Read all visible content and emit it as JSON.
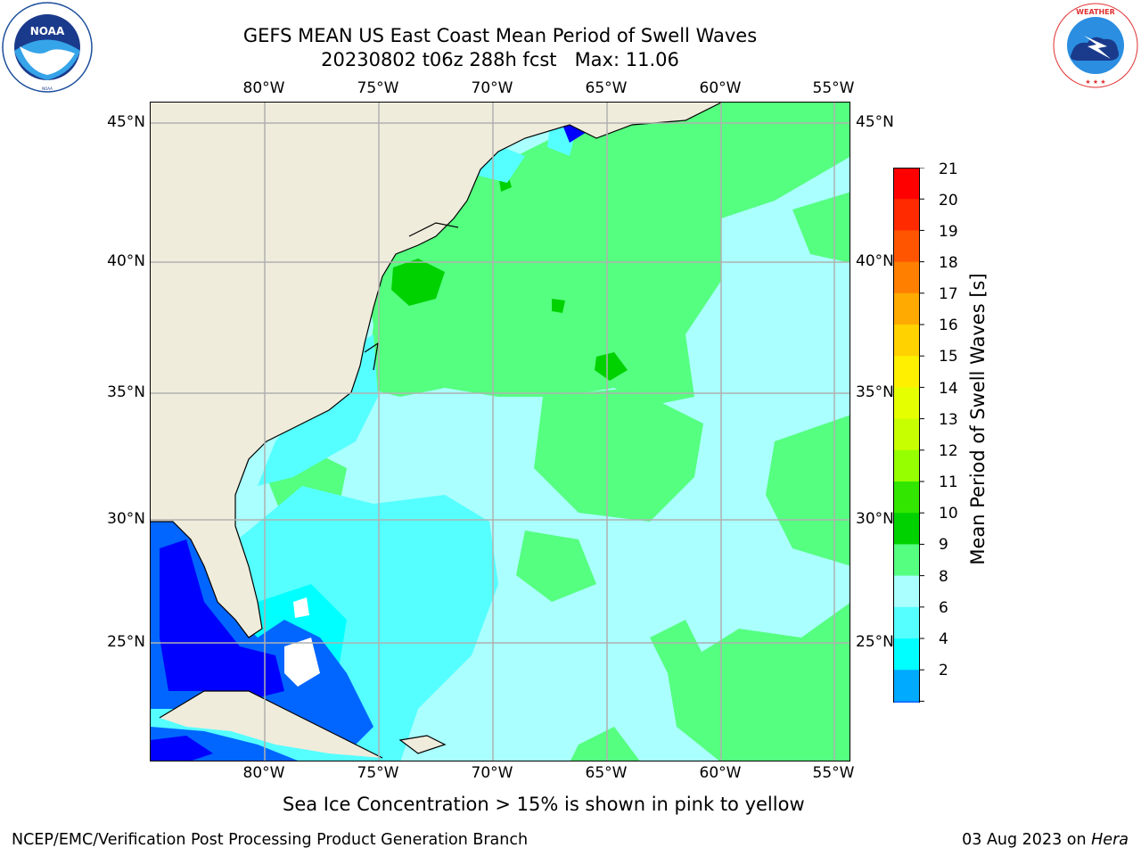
{
  "header": {
    "title_line1": "GEFS MEAN US East Coast Mean Period of Swell Waves",
    "title_line2": "20230802 t06z 288h fcst   Max: 11.06"
  },
  "logos": {
    "noaa_text": "NOAA",
    "noaa_ring": "NATIONAL OCEANIC AND ATMOSPHERIC ADMINISTRATION · U.S. DEPARTMENT OF COMMERCE",
    "nws_ring": "NATIONAL WEATHER SERVICE"
  },
  "map": {
    "lon_labels": [
      "80°W",
      "75°W",
      "70°W",
      "65°W",
      "60°W",
      "55°W"
    ],
    "lat_labels": [
      "45°N",
      "40°N",
      "35°N",
      "30°N",
      "25°N"
    ],
    "land_color": "#efecdc",
    "gridline_color": "#b0b0b0"
  },
  "colorbar": {
    "label": "Mean Period of Swell Waves [s]",
    "ticks": [
      "21",
      "20",
      "19",
      "18",
      "17",
      "16",
      "15",
      "14",
      "13",
      "12",
      "11",
      "10",
      "9",
      "8",
      "6",
      "4",
      "2"
    ],
    "colors": [
      "#ff0000",
      "#ff2a00",
      "#ff5500",
      "#ff7f00",
      "#ffaa00",
      "#ffd200",
      "#fff000",
      "#e6ff00",
      "#c8ff00",
      "#96ff00",
      "#32e600",
      "#00d200",
      "#55ff80",
      "#aaffff",
      "#55ffff",
      "#00ffff",
      "#00aaff",
      "#0066ff",
      "#0000ff"
    ]
  },
  "notes": {
    "sea_ice": "Sea Ice Concentration > 15% is shown in pink to yellow"
  },
  "footer": {
    "left": "NCEP/EMC/Verification Post Processing Product Generation Branch",
    "right_date": "03 Aug 2023 on ",
    "right_machine": "Hera"
  }
}
